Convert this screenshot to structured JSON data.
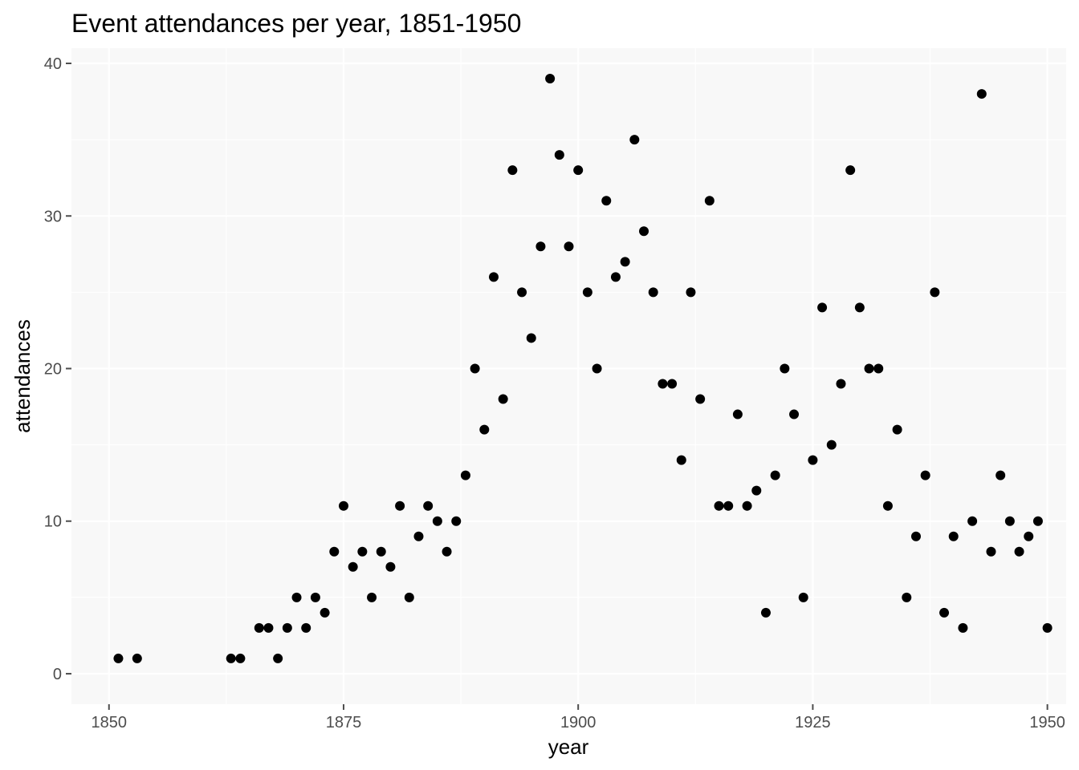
{
  "chart_data": {
    "type": "scatter",
    "title": "Event attendances per year, 1851-1950",
    "xlabel": "year",
    "ylabel": "attendances",
    "xlim": [
      1846,
      1952
    ],
    "ylim": [
      -2,
      41
    ],
    "x_ticks": [
      1850,
      1875,
      1900,
      1925,
      1950
    ],
    "y_ticks": [
      0,
      10,
      20,
      30,
      40
    ],
    "grid": true,
    "legend": "none",
    "point_color": "#000000",
    "panel_color": "#f8f8f8",
    "points": [
      [
        1851,
        1
      ],
      [
        1853,
        1
      ],
      [
        1863,
        1
      ],
      [
        1864,
        1
      ],
      [
        1866,
        3
      ],
      [
        1867,
        3
      ],
      [
        1868,
        1
      ],
      [
        1869,
        3
      ],
      [
        1870,
        5
      ],
      [
        1871,
        3
      ],
      [
        1872,
        5
      ],
      [
        1873,
        4
      ],
      [
        1874,
        8
      ],
      [
        1875,
        11
      ],
      [
        1876,
        7
      ],
      [
        1877,
        8
      ],
      [
        1878,
        5
      ],
      [
        1879,
        8
      ],
      [
        1880,
        7
      ],
      [
        1881,
        11
      ],
      [
        1882,
        5
      ],
      [
        1883,
        9
      ],
      [
        1884,
        11
      ],
      [
        1885,
        10
      ],
      [
        1886,
        8
      ],
      [
        1887,
        10
      ],
      [
        1888,
        13
      ],
      [
        1889,
        20
      ],
      [
        1890,
        16
      ],
      [
        1891,
        26
      ],
      [
        1892,
        18
      ],
      [
        1893,
        33
      ],
      [
        1894,
        25
      ],
      [
        1895,
        22
      ],
      [
        1896,
        28
      ],
      [
        1897,
        39
      ],
      [
        1898,
        34
      ],
      [
        1899,
        28
      ],
      [
        1900,
        33
      ],
      [
        1901,
        25
      ],
      [
        1902,
        20
      ],
      [
        1903,
        31
      ],
      [
        1904,
        26
      ],
      [
        1905,
        27
      ],
      [
        1906,
        35
      ],
      [
        1907,
        29
      ],
      [
        1908,
        25
      ],
      [
        1909,
        19
      ],
      [
        1910,
        19
      ],
      [
        1911,
        14
      ],
      [
        1912,
        25
      ],
      [
        1913,
        18
      ],
      [
        1914,
        31
      ],
      [
        1915,
        11
      ],
      [
        1916,
        11
      ],
      [
        1917,
        17
      ],
      [
        1918,
        11
      ],
      [
        1919,
        12
      ],
      [
        1920,
        4
      ],
      [
        1921,
        13
      ],
      [
        1922,
        20
      ],
      [
        1923,
        17
      ],
      [
        1924,
        5
      ],
      [
        1925,
        14
      ],
      [
        1926,
        24
      ],
      [
        1927,
        15
      ],
      [
        1928,
        19
      ],
      [
        1929,
        33
      ],
      [
        1930,
        24
      ],
      [
        1931,
        20
      ],
      [
        1932,
        20
      ],
      [
        1933,
        11
      ],
      [
        1934,
        16
      ],
      [
        1935,
        5
      ],
      [
        1936,
        9
      ],
      [
        1937,
        13
      ],
      [
        1938,
        25
      ],
      [
        1939,
        4
      ],
      [
        1940,
        9
      ],
      [
        1941,
        3
      ],
      [
        1942,
        10
      ],
      [
        1943,
        38
      ],
      [
        1944,
        8
      ],
      [
        1945,
        13
      ],
      [
        1946,
        10
      ],
      [
        1947,
        8
      ],
      [
        1948,
        9
      ],
      [
        1949,
        10
      ],
      [
        1950,
        3
      ]
    ]
  }
}
